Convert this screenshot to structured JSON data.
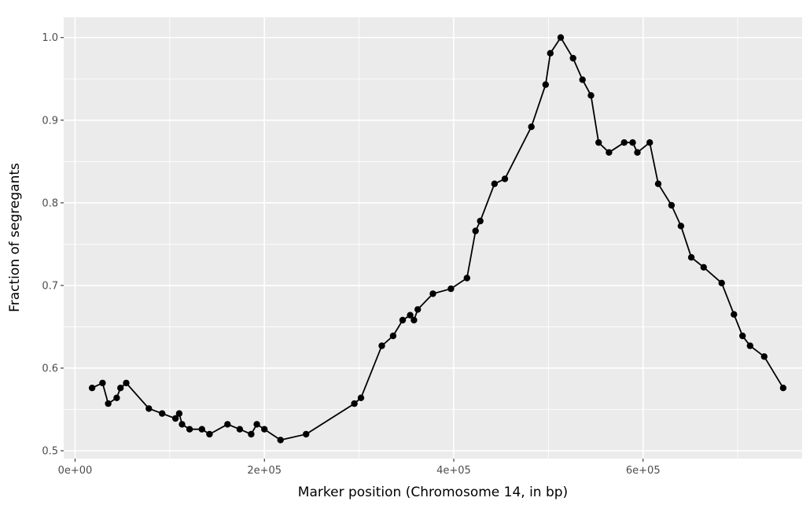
{
  "chart_data": {
    "type": "line",
    "title": "",
    "xlabel": "Marker position (Chromosome 14, in bp)",
    "ylabel": "Fraction of segregants",
    "xlim": [
      -12000,
      768000
    ],
    "ylim": [
      0.4905,
      1.0245
    ],
    "grid": true,
    "x_ticks": [
      0,
      200000,
      400000,
      600000
    ],
    "x_tick_labels": [
      "0e+00",
      "2e+05",
      "4e+05",
      "6e+05"
    ],
    "y_ticks": [
      0.5,
      0.6,
      0.7,
      0.8,
      0.9,
      1.0
    ],
    "y_tick_labels": [
      "0.5",
      "0.6",
      "0.7",
      "0.8",
      "0.9",
      "1.0"
    ],
    "colors": {
      "panel": "#ebebeb",
      "grid": "#ffffff",
      "series": "#000000"
    },
    "series": [
      {
        "x": [
          18000,
          29000,
          35000,
          44000,
          48000,
          54000,
          78000,
          92000,
          106000,
          110000,
          113000,
          121000,
          134000,
          142000,
          161000,
          174000,
          186000,
          192000,
          200000,
          217000,
          244000,
          295000,
          302000,
          324000,
          336000,
          346000,
          354000,
          358000,
          362000,
          378000,
          397000,
          414000,
          423000,
          428000,
          443000,
          454000,
          482000,
          497000,
          502000,
          513000,
          526000,
          536000,
          545000,
          553000,
          564000,
          580000,
          589000,
          594000,
          607000,
          616000,
          630000,
          640000,
          651000,
          664000,
          683000,
          696000,
          705000,
          713000,
          728000,
          748000
        ],
        "y": [
          0.576,
          0.582,
          0.557,
          0.564,
          0.576,
          0.582,
          0.551,
          0.545,
          0.539,
          0.545,
          0.532,
          0.526,
          0.526,
          0.52,
          0.532,
          0.526,
          0.52,
          0.532,
          0.526,
          0.513,
          0.52,
          0.557,
          0.564,
          0.627,
          0.639,
          0.658,
          0.664,
          0.658,
          0.671,
          0.69,
          0.696,
          0.709,
          0.766,
          0.778,
          0.823,
          0.829,
          0.892,
          0.943,
          0.981,
          1.0,
          0.975,
          0.949,
          0.93,
          0.873,
          0.861,
          0.873,
          0.873,
          0.861,
          0.873,
          0.823,
          0.797,
          0.772,
          0.734,
          0.722,
          0.703,
          0.665,
          0.639,
          0.627,
          0.614,
          0.576
        ]
      }
    ]
  }
}
